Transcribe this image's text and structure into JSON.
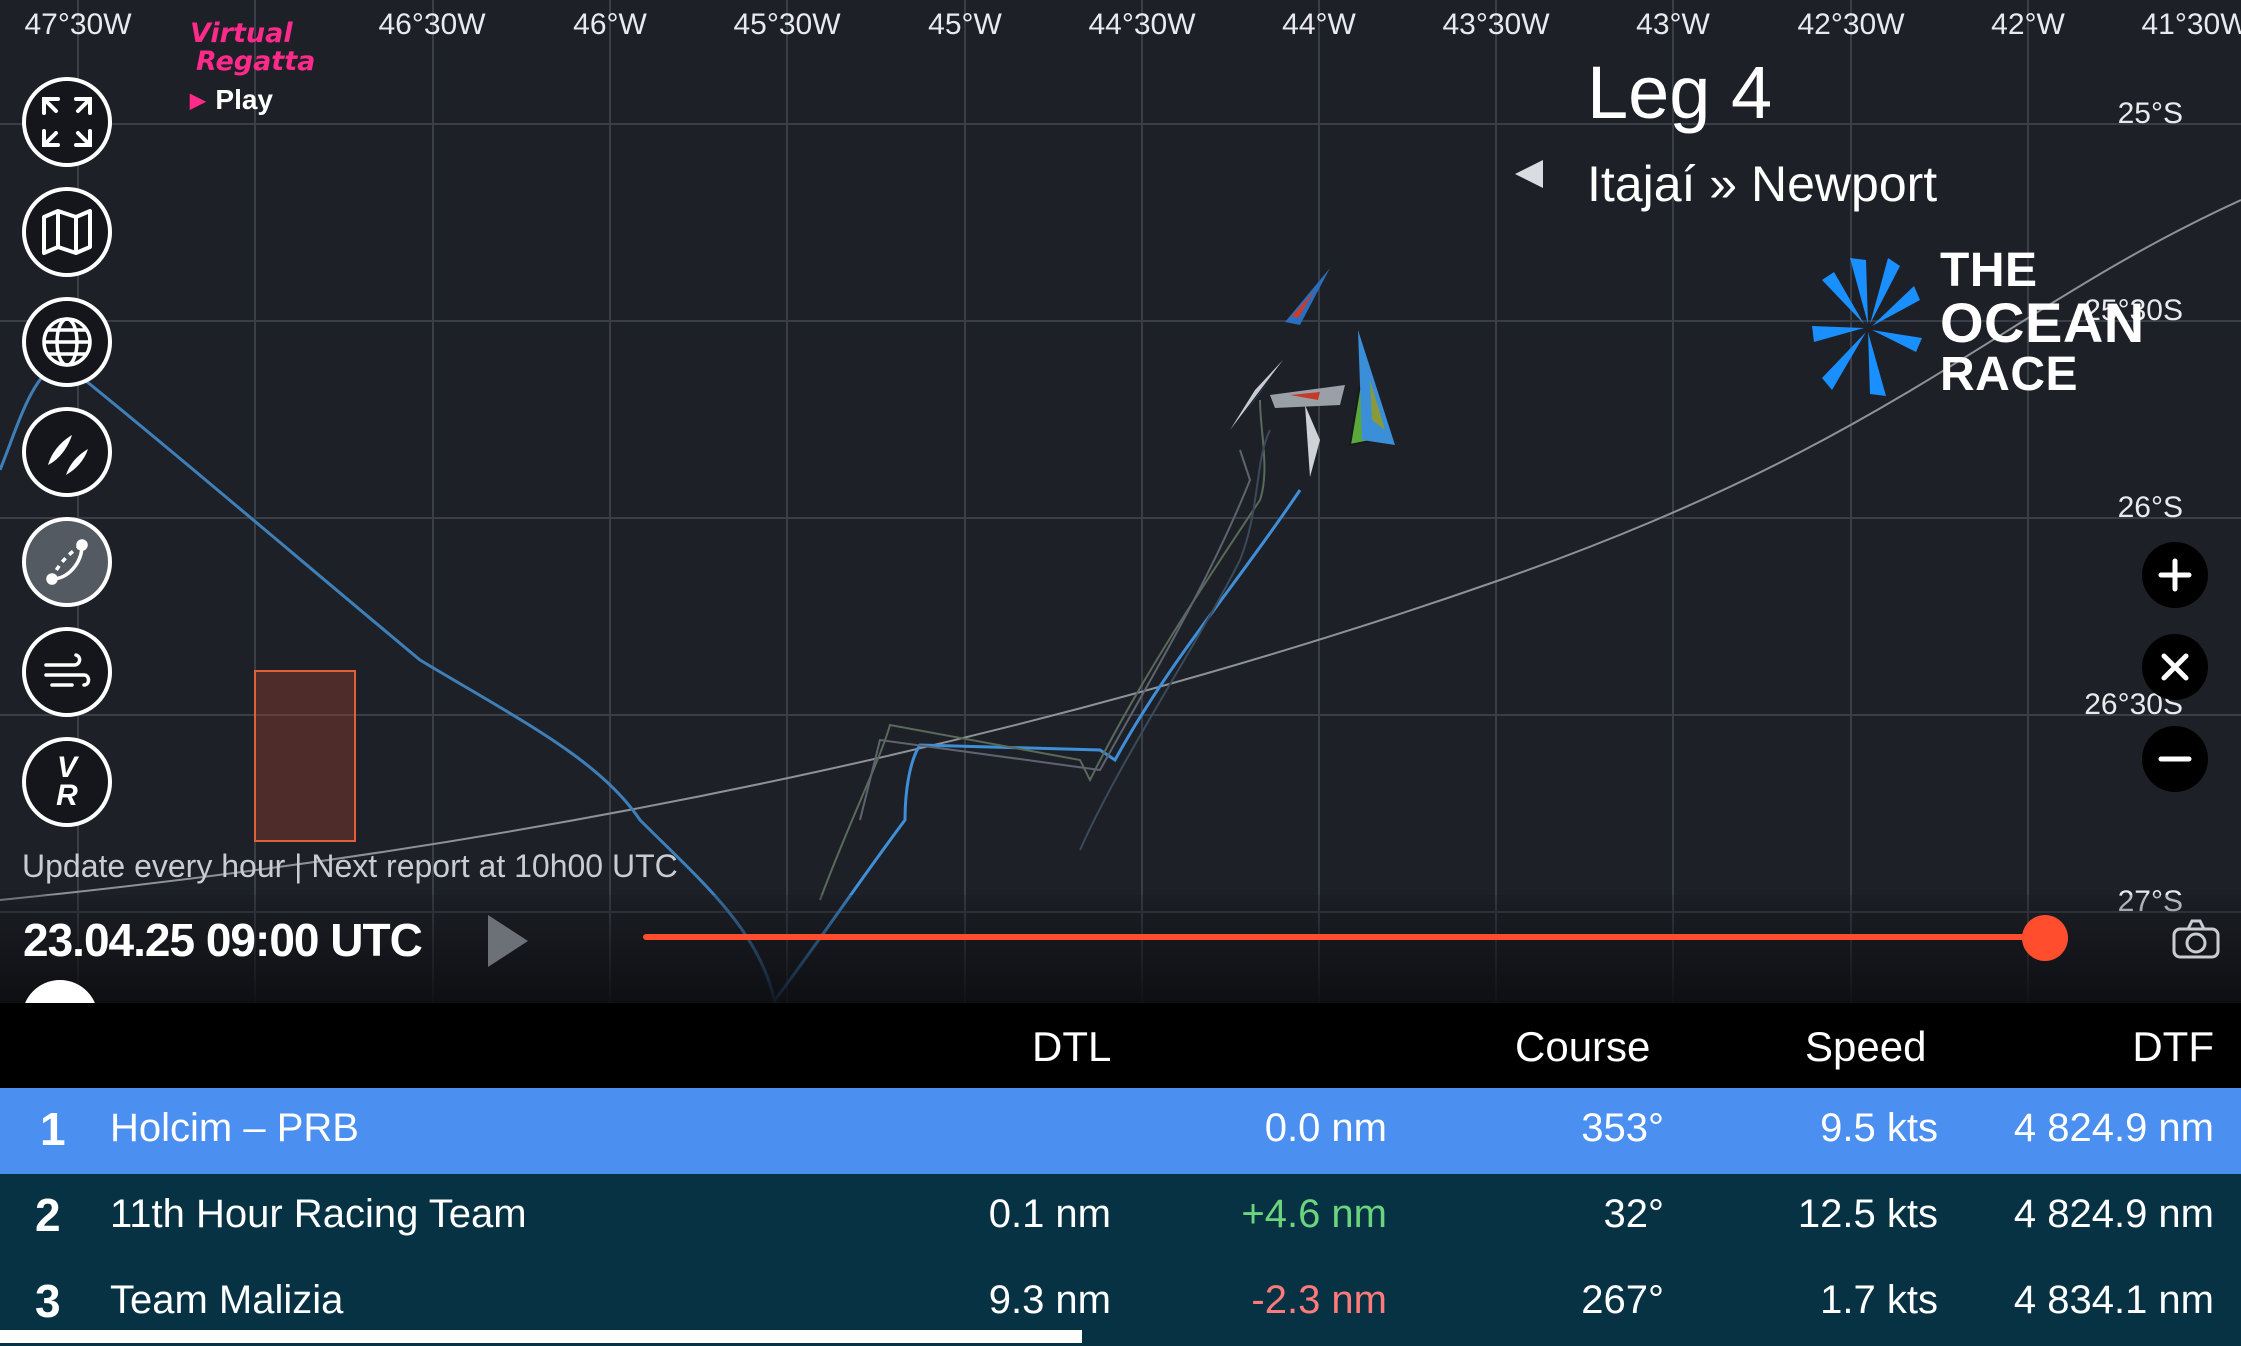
{
  "map": {
    "longitude_labels": [
      "47°30W",
      "46°30W",
      "46°W",
      "45°30W",
      "45°W",
      "44°30W",
      "44°W",
      "43°30W",
      "43°W",
      "42°30W",
      "42°W",
      "41°30W"
    ],
    "latitude_labels": [
      "25°S",
      "25°30S",
      "26°S",
      "26°30S",
      "27°S"
    ],
    "update_note": "Update every hour | Next report at  10h00  UTC"
  },
  "brand": {
    "vr_logo_line1": "Virtual",
    "vr_logo_line2": "Regatta",
    "vr_play": "Play",
    "tor_line1": "THE",
    "tor_line2": "OCEAN",
    "tor_line3": "RACE",
    "tor_color": "#1a8fff",
    "vr_color": "#ff2a8a"
  },
  "sidebar": {
    "buttons": [
      {
        "name": "fullscreen-button",
        "icon": "fullscreen-icon"
      },
      {
        "name": "map-button",
        "icon": "map-icon"
      },
      {
        "name": "globe-button",
        "icon": "globe-icon"
      },
      {
        "name": "boats-button",
        "icon": "boats-icon"
      },
      {
        "name": "route-button",
        "icon": "route-icon",
        "active": true
      },
      {
        "name": "wind-button",
        "icon": "wind-icon"
      },
      {
        "name": "vr-button",
        "icon": "vr-icon",
        "text": "V R"
      }
    ]
  },
  "leg": {
    "title": "Leg 4",
    "route": "Itajaí » Newport"
  },
  "timeline": {
    "timestamp": "23.04.25 09:00 UTC",
    "progress": 1.0,
    "accent": "#ff4d2e"
  },
  "table": {
    "headers": {
      "dtl": "DTL",
      "course": "Course",
      "speed": "Speed",
      "dtf": "DTF"
    },
    "rows": [
      {
        "rank": "1",
        "team": "Holcim – PRB",
        "dtl": "",
        "delta": "0.0 nm",
        "course": "353°",
        "speed": "9.5 kts",
        "dtf": "4 824.9 nm",
        "bg": "#4b8ff0",
        "delta_color": "#ffffff"
      },
      {
        "rank": "2",
        "team": "11th Hour Racing Team",
        "dtl": "0.1 nm",
        "delta": "+4.6 nm",
        "course": "32°",
        "speed": "12.5 kts",
        "dtf": "4 824.9 nm",
        "bg": "#063244",
        "delta_color": "#6cd47c"
      },
      {
        "rank": "3",
        "team": "Team Malizia",
        "dtl": "9.3 nm",
        "delta": "-2.3 nm",
        "course": "267°",
        "speed": "1.7 kts",
        "dtf": "4 834.1 nm",
        "bg": "#063244",
        "delta_color": "#ff7a7a"
      }
    ]
  }
}
